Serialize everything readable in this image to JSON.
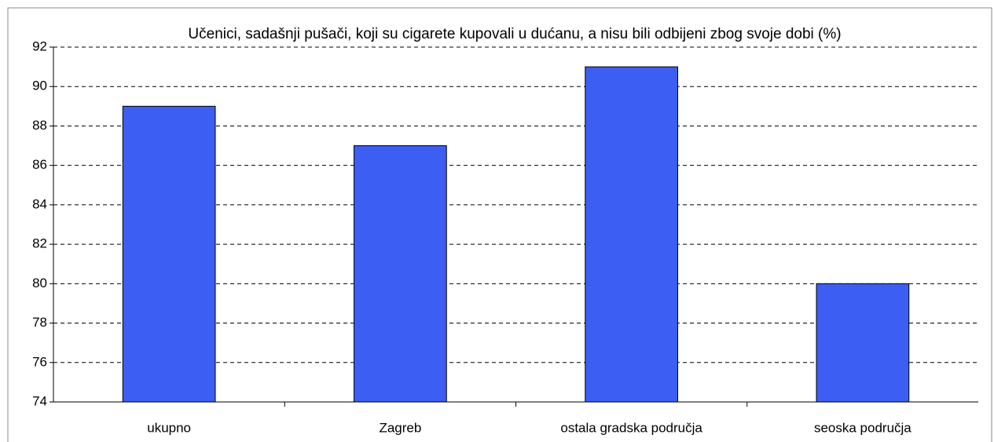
{
  "chart_data": {
    "type": "bar",
    "title": "Učenici, sadašnji pušači, koji su cigarete kupovali u dućanu, a nisu bili odbijeni zbog svoje dobi (%)",
    "categories": [
      "ukupno",
      "Zagreb",
      "ostala gradska područja",
      "seoska područja"
    ],
    "values": [
      89,
      87,
      91,
      80
    ],
    "color": "#3c5ef2",
    "ylim": [
      74,
      92
    ],
    "yticks": [
      74,
      76,
      78,
      80,
      82,
      84,
      86,
      88,
      90,
      92
    ],
    "grid": true
  }
}
